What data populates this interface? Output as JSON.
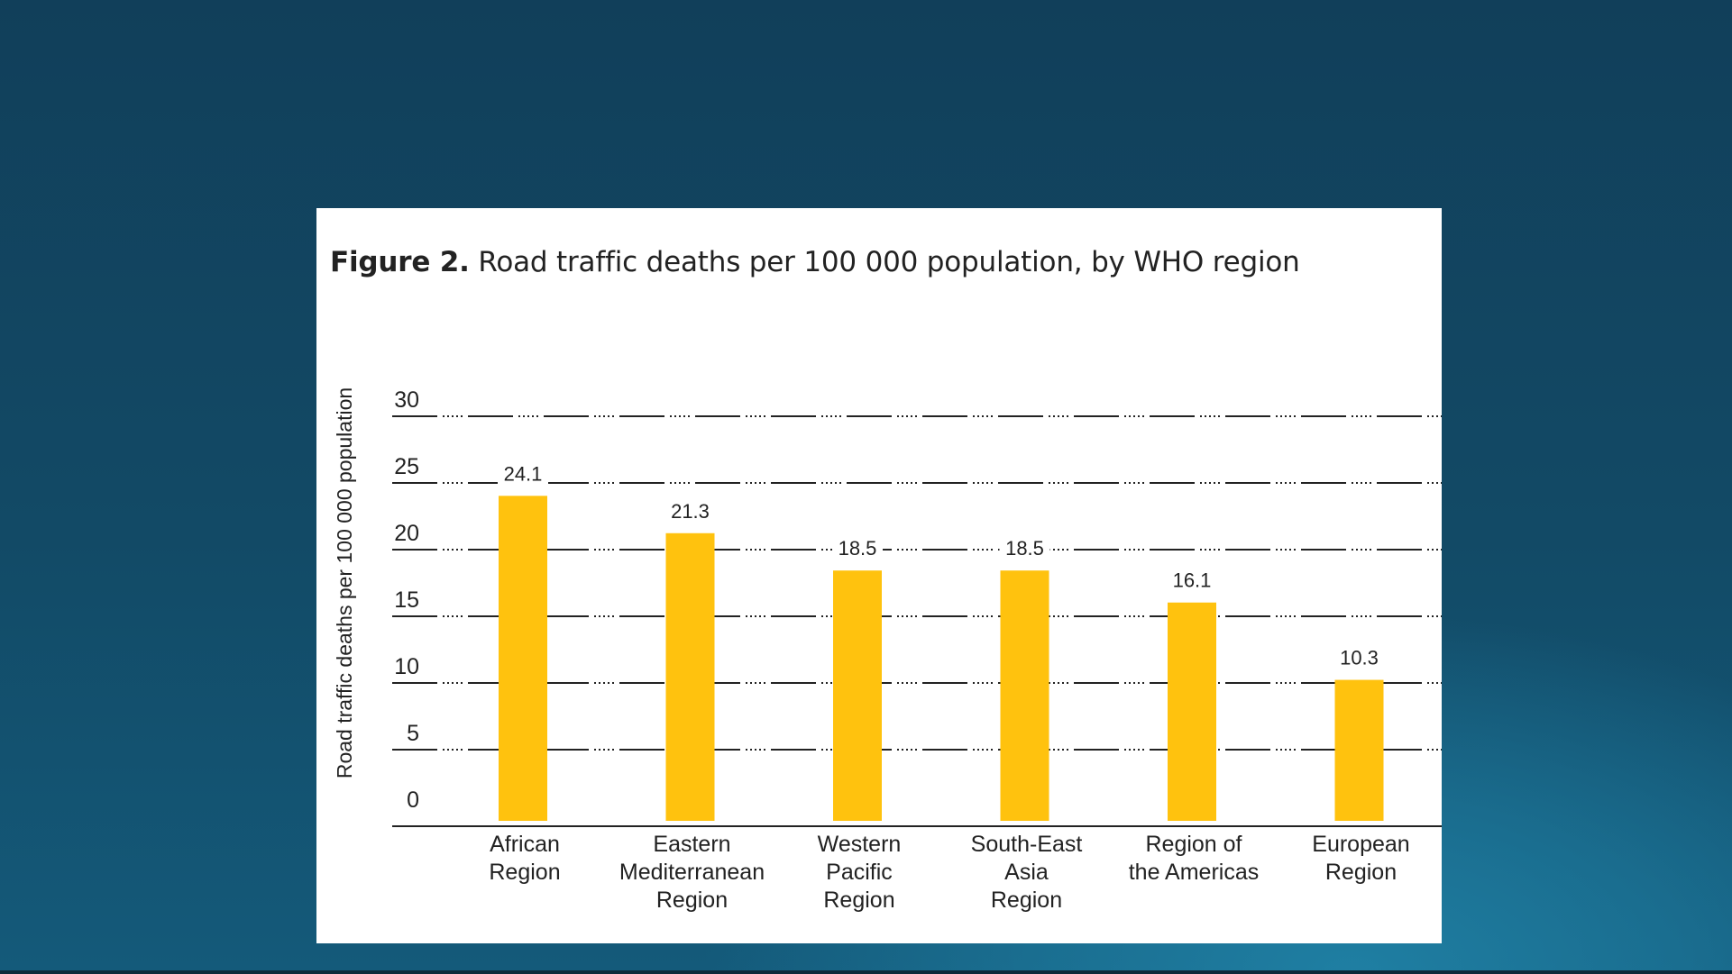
{
  "chart_data": {
    "type": "bar",
    "figure_label": "Figure 2.",
    "title": "Road traffic deaths per 100 000 population, by WHO region",
    "ylabel": "Road traffic deaths per 100 000 population",
    "xlabel": "",
    "ylim": [
      0,
      30
    ],
    "yticks": [
      "0",
      "5",
      "10",
      "15",
      "20",
      "25",
      "30"
    ],
    "grid": true,
    "bar_color": "#FFC20E",
    "categories": [
      [
        "African",
        "Region"
      ],
      [
        "Eastern",
        "Mediterranean",
        "Region"
      ],
      [
        "Western",
        "Pacific",
        "Region"
      ],
      [
        "South-East",
        "Asia",
        "Region"
      ],
      [
        "Region of",
        "the Americas"
      ],
      [
        "European",
        "Region"
      ]
    ],
    "values": [
      24.1,
      21.3,
      18.5,
      18.5,
      16.1,
      10.3
    ],
    "value_labels": [
      "24.1",
      "21.3",
      "18.5",
      "18.5",
      "16.1",
      "10.3"
    ]
  }
}
